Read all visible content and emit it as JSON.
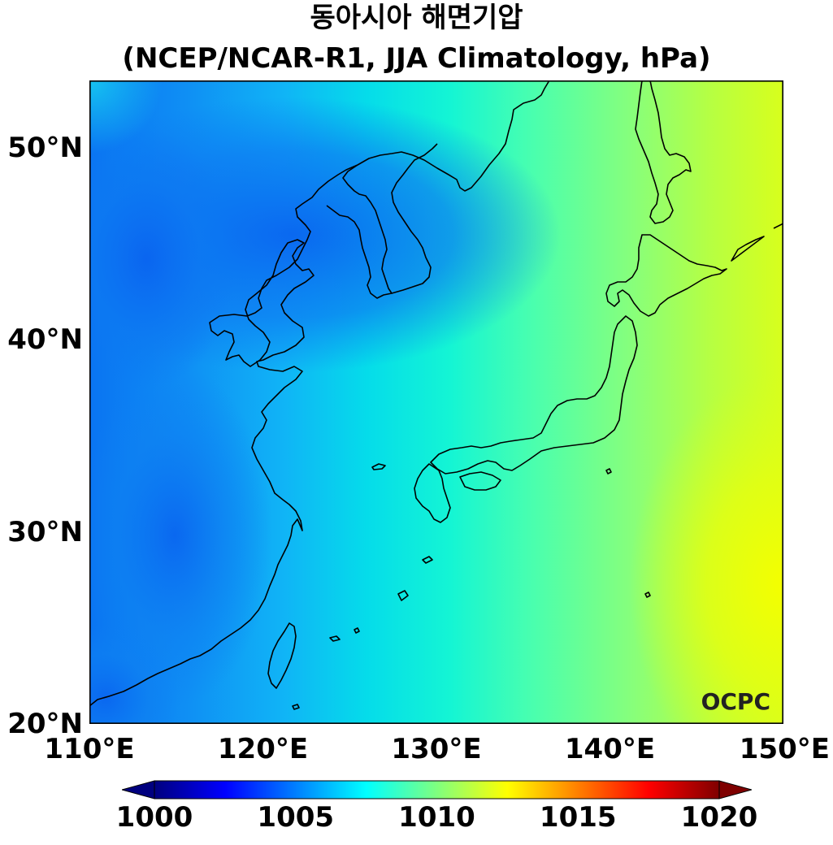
{
  "title": {
    "line1": "동아시아 해면기압",
    "line2": "(NCEP/NCAR-R1, JJA Climatology, hPa)"
  },
  "map": {
    "lon_range": [
      110,
      150
    ],
    "lat_range": [
      20,
      53.5
    ],
    "lat_ticks": [
      {
        "value": 20,
        "label": "20°N"
      },
      {
        "value": 30,
        "label": "30°N"
      },
      {
        "value": 40,
        "label": "40°N"
      },
      {
        "value": 50,
        "label": "50°N"
      }
    ],
    "lon_ticks": [
      {
        "value": 110,
        "label": "110°E"
      },
      {
        "value": 120,
        "label": "120°E"
      },
      {
        "value": 130,
        "label": "130°E"
      },
      {
        "value": 140,
        "label": "140°E"
      },
      {
        "value": 150,
        "label": "150°E"
      }
    ],
    "watermark": "OCPC",
    "field_colors": {
      "low": "#0a6cf0",
      "mid_low": "#12b8f5",
      "mid": "#00e6e0",
      "mid_high": "#60ff9c",
      "high": "#c8ff2a",
      "max": "#f4ff00"
    },
    "coastline_color": "#000000"
  },
  "colorbar": {
    "range": [
      1000,
      1020
    ],
    "extend": "both",
    "ticks": [
      {
        "value": 1000,
        "label": "1000"
      },
      {
        "value": 1005,
        "label": "1005"
      },
      {
        "value": 1010,
        "label": "1010"
      },
      {
        "value": 1015,
        "label": "1015"
      },
      {
        "value": 1020,
        "label": "1020"
      }
    ],
    "colormap": "jet",
    "colors": [
      "#00007f",
      "#0000ff",
      "#007fff",
      "#00ffff",
      "#7fff7f",
      "#ffff00",
      "#ff7f00",
      "#ff0000",
      "#7f0000"
    ]
  }
}
